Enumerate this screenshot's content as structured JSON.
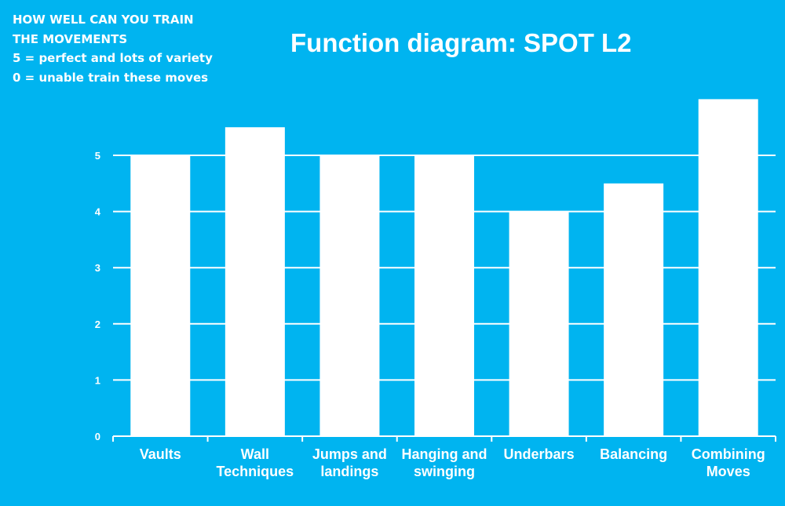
{
  "note": {
    "lines": [
      "HOW WELL CAN YOU TRAIN",
      "THE MOVEMENTS",
      "5 = perfect and lots of variety",
      "0 = unable train these moves"
    ]
  },
  "colors": {
    "background": "#00b4f0",
    "bars": "#ffffff",
    "gridlines": "#ffffff",
    "text": "#ffffff"
  },
  "chart_data": {
    "type": "bar",
    "title": "Function diagram: SPOT L2",
    "xlabel": "",
    "ylabel": "",
    "categories": [
      "Vaults",
      "Wall Techniques",
      "Jumps and landings",
      "Hanging and swinging",
      "Underbars",
      "Balancing",
      "Combining Moves"
    ],
    "category_label_lines": [
      [
        "Vaults"
      ],
      [
        "Wall",
        "Techniques"
      ],
      [
        "Jumps and",
        "landings"
      ],
      [
        "Hanging and",
        "swinging"
      ],
      [
        "Underbars"
      ],
      [
        "Balancing"
      ],
      [
        "Combining",
        "Moves"
      ]
    ],
    "values": [
      5,
      5.5,
      5,
      5,
      4,
      4.5,
      6
    ],
    "yticks": [
      "0",
      "1",
      "2",
      "3",
      "4",
      "5"
    ],
    "ylim": [
      0,
      6
    ],
    "grid": true,
    "legend": "none"
  }
}
